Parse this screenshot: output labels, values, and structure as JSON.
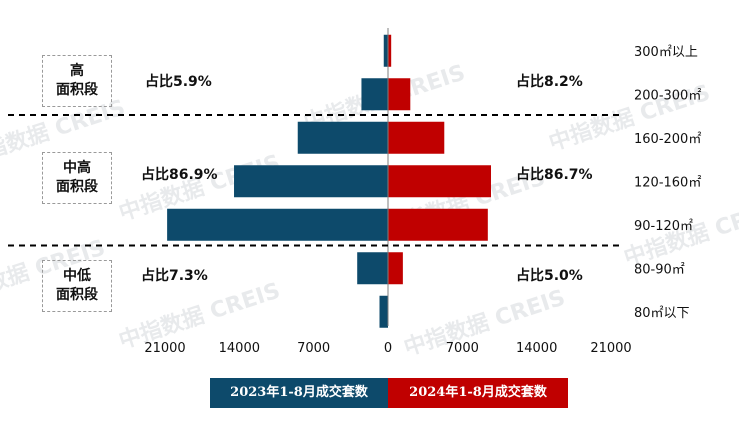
{
  "chart_data": {
    "type": "bar",
    "orientation": "horizontal-butterfly",
    "categories": [
      "300㎡以上",
      "200-300㎡",
      "160-200㎡",
      "120-160㎡",
      "90-120㎡",
      "80-90㎡",
      "80㎡以下"
    ],
    "series": [
      {
        "name": "2023年1-8月成交套数",
        "side": "left",
        "color": "#0d4a6b",
        "values": [
          400,
          2500,
          8500,
          14500,
          20800,
          2900,
          800
        ]
      },
      {
        "name": "2024年1-8月成交套数",
        "side": "right",
        "color": "#c00000",
        "values": [
          300,
          2100,
          5300,
          9700,
          9400,
          1400,
          0
        ]
      }
    ],
    "x_ticks": [
      "21000",
      "14000",
      "7000",
      "0",
      "7000",
      "14000",
      "21000"
    ],
    "xlim": [
      -21000,
      21000
    ],
    "grid": false,
    "legend_position": "bottom"
  },
  "groups": [
    {
      "label_lines": [
        "高",
        "面积段"
      ],
      "share_left": "占比5.9%",
      "share_right": "占比8.2%"
    },
    {
      "label_lines": [
        "中高",
        "面积段"
      ],
      "share_left": "占比86.9%",
      "share_right": "占比86.7%"
    },
    {
      "label_lines": [
        "中低",
        "面积段"
      ],
      "share_left": "占比7.3%",
      "share_right": "占比5.0%"
    }
  ],
  "watermark": "中指数据 CREIS"
}
